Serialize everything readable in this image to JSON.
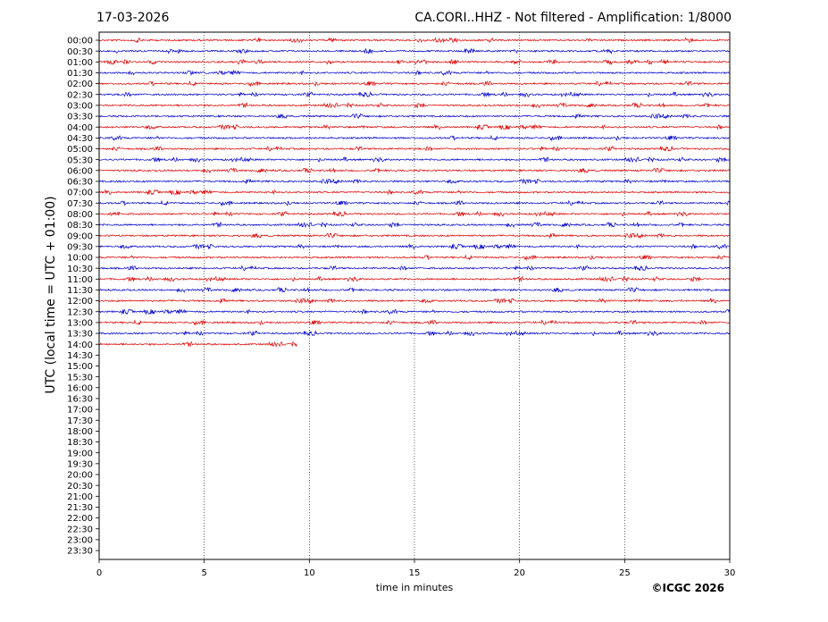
{
  "header": {
    "date": "17-03-2026",
    "title": "CA.CORI..HHZ - Not filtered - Amplification: 1/8000"
  },
  "copyright": "©ICGC 2026",
  "chart_data": {
    "type": "line",
    "title": "CA.CORI..HHZ - Not filtered - Amplification: 1/8000",
    "xlabel": "time in minutes",
    "ylabel": "UTC (local time = UTC + 01:00)",
    "xlim": [
      0,
      30
    ],
    "x_ticks": [
      0,
      5,
      10,
      15,
      20,
      25,
      30
    ],
    "y_tick_labels": [
      "00:00",
      "00:30",
      "01:00",
      "01:30",
      "02:00",
      "02:30",
      "03:00",
      "03:30",
      "04:00",
      "04:30",
      "05:00",
      "05:30",
      "06:00",
      "06:30",
      "07:00",
      "07:30",
      "08:00",
      "08:30",
      "09:00",
      "09:30",
      "10:00",
      "10:30",
      "11:00",
      "11:30",
      "12:00",
      "12:30",
      "13:00",
      "13:30",
      "14:00",
      "14:30",
      "15:00",
      "15:30",
      "16:00",
      "16:30",
      "17:00",
      "17:30",
      "18:00",
      "18:30",
      "19:00",
      "19:30",
      "20:00",
      "20:30",
      "21:00",
      "21:30",
      "22:00",
      "22:30",
      "23:00",
      "23:30"
    ],
    "grid": "vertical dotted lines at x ticks",
    "trace_colors": [
      "#e00000",
      "#0000d0"
    ],
    "trace_end_minutes": [
      30,
      30,
      30,
      30,
      30,
      30,
      30,
      30,
      30,
      30,
      30,
      30,
      30,
      30,
      30,
      30,
      30,
      30,
      30,
      30,
      30,
      30,
      30,
      30,
      30,
      30,
      30,
      30,
      9.4
    ]
  }
}
